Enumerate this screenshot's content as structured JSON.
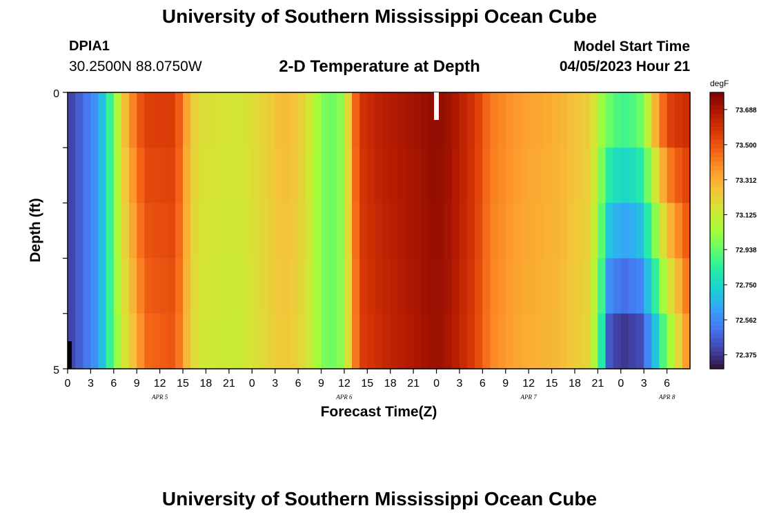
{
  "header": {
    "title": "University of Southern Mississippi Ocean Cube",
    "station_id": "DPIA1",
    "station_coords": "30.2500N  88.0750W",
    "chart_title": "2-D Temperature at Depth",
    "start_label": "Model Start Time",
    "start_value": "04/05/2023 Hour 21"
  },
  "footer": {
    "title": "University of Southern Mississippi Ocean Cube"
  },
  "chart_data": {
    "type": "heatmap",
    "title": "2-D Temperature at Depth",
    "xlabel": "Forecast Time(Z)",
    "ylabel": "Depth (ft)",
    "colorbar_unit": "degF",
    "colorbar_ticks": [
      "73.688",
      "73.500",
      "73.312",
      "73.125",
      "72.938",
      "72.750",
      "72.562",
      "72.375"
    ],
    "vmin": 72.3,
    "vmax": 73.78,
    "x_hour_start": 0,
    "x_hour_end": 81,
    "x_hour_step": 1,
    "x_tick_labels": [
      "0",
      "3",
      "6",
      "9",
      "12",
      "15",
      "18",
      "21",
      "0",
      "3",
      "6",
      "9",
      "12",
      "15",
      "18",
      "21",
      "0",
      "3",
      "6",
      "9",
      "12",
      "15",
      "18",
      "21",
      "0",
      "3",
      "6"
    ],
    "date_labels": [
      {
        "label": "APR 5",
        "hour": 12
      },
      {
        "label": "APR 6",
        "hour": 36
      },
      {
        "label": "APR 7",
        "hour": 60
      },
      {
        "label": "APR 8",
        "hour": 78
      }
    ],
    "y_tick_labels": [
      "0",
      "5"
    ],
    "ylim": [
      0,
      5
    ],
    "depth_levels": 5,
    "surface_profile": [
      [
        0,
        72.38
      ],
      [
        4,
        72.6
      ],
      [
        6,
        72.95
      ],
      [
        7,
        73.2
      ],
      [
        8,
        73.35
      ],
      [
        9,
        73.45
      ],
      [
        10,
        73.55
      ],
      [
        14,
        73.56
      ],
      [
        15,
        73.4
      ],
      [
        16,
        73.26
      ],
      [
        17,
        73.18
      ],
      [
        22,
        73.15
      ],
      [
        25,
        73.2
      ],
      [
        28,
        73.28
      ],
      [
        30,
        73.25
      ],
      [
        32,
        73.1
      ],
      [
        33,
        72.98
      ],
      [
        35,
        72.95
      ],
      [
        36,
        73.05
      ],
      [
        37,
        73.35
      ],
      [
        38,
        73.58
      ],
      [
        41,
        73.66
      ],
      [
        45,
        73.7
      ],
      [
        48,
        73.74
      ],
      [
        50,
        73.7
      ],
      [
        53,
        73.58
      ],
      [
        55,
        73.42
      ],
      [
        59,
        73.35
      ],
      [
        64,
        73.3
      ],
      [
        68,
        73.22
      ],
      [
        69,
        73.1
      ],
      [
        70,
        72.95
      ],
      [
        71,
        72.88
      ],
      [
        73,
        72.95
      ],
      [
        74,
        73.15
      ],
      [
        75,
        73.35
      ],
      [
        76,
        73.52
      ],
      [
        78,
        73.6
      ],
      [
        81,
        73.62
      ]
    ],
    "bottom_profile": [
      [
        0,
        72.38
      ],
      [
        4,
        72.6
      ],
      [
        6,
        72.95
      ],
      [
        7,
        73.1
      ],
      [
        8,
        73.22
      ],
      [
        9,
        73.3
      ],
      [
        10,
        73.45
      ],
      [
        14,
        73.5
      ],
      [
        15,
        73.35
      ],
      [
        16,
        73.22
      ],
      [
        17,
        73.15
      ],
      [
        22,
        73.12
      ],
      [
        25,
        73.18
      ],
      [
        28,
        73.25
      ],
      [
        30,
        73.22
      ],
      [
        32,
        73.1
      ],
      [
        33,
        72.98
      ],
      [
        35,
        72.95
      ],
      [
        36,
        73.05
      ],
      [
        37,
        73.3
      ],
      [
        38,
        73.55
      ],
      [
        41,
        73.62
      ],
      [
        45,
        73.68
      ],
      [
        48,
        73.72
      ],
      [
        50,
        73.68
      ],
      [
        53,
        73.55
      ],
      [
        55,
        73.4
      ],
      [
        59,
        73.32
      ],
      [
        64,
        73.28
      ],
      [
        68,
        73.2
      ],
      [
        69,
        72.95
      ],
      [
        70,
        72.7
      ],
      [
        71,
        72.5
      ],
      [
        74,
        72.42
      ],
      [
        76,
        72.55
      ],
      [
        77,
        72.75
      ],
      [
        78,
        72.95
      ],
      [
        79,
        73.2
      ],
      [
        80,
        73.4
      ],
      [
        81,
        73.45
      ]
    ],
    "deep_override": [
      [
        70,
        72.95,
        72.45
      ],
      [
        71,
        72.9,
        72.4
      ],
      [
        72,
        72.88,
        72.38
      ],
      [
        73,
        72.9,
        72.4
      ],
      [
        74,
        72.95,
        72.42
      ],
      [
        75,
        73.1,
        72.55
      ],
      [
        76,
        73.3,
        72.7
      ],
      [
        77,
        73.45,
        72.9
      ],
      [
        78,
        73.55,
        73.05
      ],
      [
        79,
        73.58,
        73.2
      ],
      [
        80,
        73.6,
        73.35
      ]
    ],
    "colormap": [
      "#30123b",
      "#4145ab",
      "#4675ed",
      "#39a2fc",
      "#1bcfd4",
      "#24eca6",
      "#61fc6c",
      "#a4fc3b",
      "#d1e834",
      "#f3c63a",
      "#fe9b2d",
      "#f36315",
      "#d93806",
      "#b11901",
      "#7a0402"
    ]
  }
}
